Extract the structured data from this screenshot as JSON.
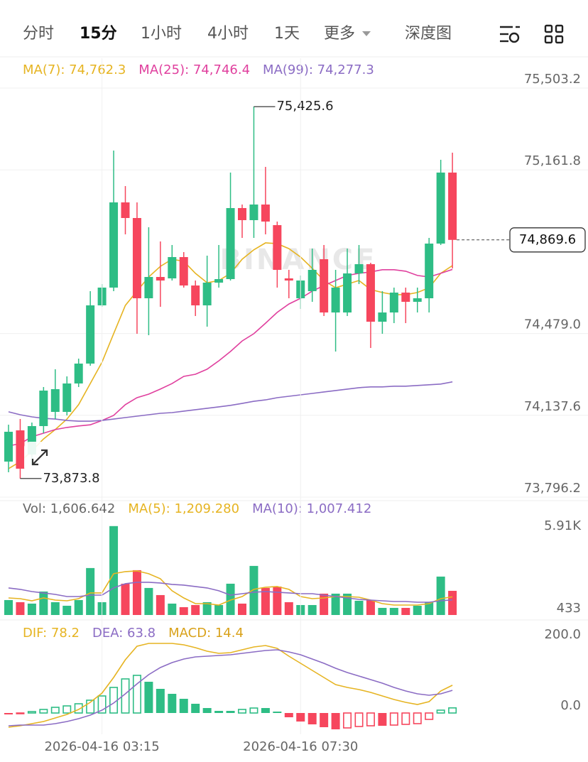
{
  "tabs": [
    "分时",
    "15分",
    "1小时",
    "4小时",
    "1天",
    "更多",
    "深度图"
  ],
  "active_tab": 1,
  "chart_data": [
    {
      "type": "candlestick",
      "watermark": "BINANCE",
      "up_color": "#2ebd85",
      "down_color": "#f6465d",
      "open": [
        73944.4,
        74074.8,
        73974.0,
        74092.6,
        74151.8,
        74151.8,
        74270.4,
        74353.4,
        74596.4,
        74670.5,
        75026.1,
        74960.9,
        74626.0,
        74714.9,
        74709.0,
        74797.9,
        74679.3,
        74596.4,
        74691.2,
        74706.0,
        75002.4,
        74952.0,
        75017.2,
        74931.2,
        74709.0,
        74626.0,
        74655.6,
        74789.0,
        74566.7,
        74566.7,
        74729.7,
        74768.3,
        74528.2,
        74566.7,
        74649.7,
        74611.2,
        74626.0,
        74854.2,
        75150.5
      ],
      "high": [
        74098.5,
        74122.2,
        74107.4,
        74255.6,
        74329.7,
        74300.0,
        74374.1,
        74655.6,
        74685.3,
        75242.4,
        75094.2,
        75026.1,
        74922.4,
        74863.1,
        74848.3,
        74818.6,
        74700.1,
        74803.8,
        74848.3,
        75150.5,
        75017.2,
        75425.6,
        75174.3,
        74946.1,
        74744.5,
        74720.8,
        74833.4,
        74848.3,
        74744.5,
        74833.4,
        74848.3,
        74774.2,
        74655.6,
        74670.5,
        74670.5,
        74670.5,
        74877.9,
        75203.9,
        75233.5
      ],
      "low": [
        73899.9,
        73873.8,
        73929.6,
        74062.9,
        74122.2,
        74137.0,
        74255.6,
        74344.5,
        74590.4,
        74655.6,
        74892.7,
        74477.8,
        74471.9,
        74590.4,
        74700.1,
        74670.5,
        74551.9,
        74507.5,
        74670.5,
        74700.1,
        74877.9,
        74877.9,
        74892.7,
        74670.5,
        74626.0,
        74581.6,
        74611.2,
        74551.9,
        74403.7,
        74551.9,
        74685.3,
        74418.6,
        74477.8,
        74522.3,
        74522.3,
        74566.7,
        74566.7,
        74848.3,
        74750.5
      ],
      "close": [
        74068.9,
        73914.8,
        74092.6,
        74240.7,
        74246.7,
        74270.4,
        74353.4,
        74596.4,
        74670.5,
        75026.1,
        74960.9,
        74626.0,
        74714.9,
        74700.1,
        74797.9,
        74679.3,
        74596.4,
        74691.2,
        74706.0,
        75002.4,
        74952.0,
        75017.2,
        74946.1,
        74744.5,
        74700.1,
        74700.1,
        74744.5,
        74566.7,
        74670.5,
        74729.7,
        74768.3,
        74528.2,
        74566.7,
        74649.7,
        74611.2,
        74626.0,
        74854.2,
        75150.5,
        74869.6
      ],
      "series": [
        {
          "name": "MA(7): 74,762.3",
          "color": "#e6b422",
          "values": [
            73915,
            73944,
            73989,
            74039,
            74078,
            74122,
            74182,
            74270,
            74359,
            74478,
            74596,
            74656,
            74715,
            74759,
            74789,
            74780,
            74730,
            74691,
            74700,
            74730,
            74789,
            74828,
            74857,
            74854,
            74833,
            74798,
            74751,
            74700,
            74670,
            74685,
            74700,
            74662,
            74650,
            74641,
            74641,
            74650,
            74670,
            74730,
            74762.3
          ]
        },
        {
          "name": "MA(25): 74,746.4",
          "color": "#e0409e",
          "values": [
            74010,
            74019,
            74048,
            74063,
            74078,
            74087,
            74093,
            74098,
            74116,
            74137,
            74182,
            74211,
            74226,
            74247,
            74270,
            74300,
            74309,
            74330,
            74365,
            74404,
            74448,
            74478,
            74522,
            74567,
            74602,
            74626,
            74656,
            74679,
            74700,
            74721,
            74730,
            74736,
            74745,
            74745,
            74739,
            74721,
            74715,
            74730,
            74746.4
          ]
        },
        {
          "name": "MA(99): 74,277.3",
          "color": "#8b6cc4",
          "values": [
            74152,
            74140,
            74131,
            74125,
            74122,
            74116,
            74113,
            74113,
            74116,
            74122,
            74128,
            74134,
            74140,
            74146,
            74149,
            74155,
            74161,
            74167,
            74173,
            74179,
            74187,
            74196,
            74202,
            74211,
            74217,
            74223,
            74229,
            74235,
            74241,
            74247,
            74253,
            74256,
            74256,
            74259,
            74259,
            74262,
            74265,
            74268,
            74277.3
          ]
        }
      ],
      "ylim": [
        73796.2,
        75503.2
      ],
      "yticks": [
        {
          "value": 73796.2,
          "label": "73,796.2"
        },
        {
          "value": 74137.6,
          "label": "74,137.6"
        },
        {
          "value": 74479.0,
          "label": "74,479.0"
        },
        {
          "value": 75161.8,
          "label": "75,161.8"
        },
        {
          "value": 75503.2,
          "label": "75,503.2"
        }
      ],
      "grid": true,
      "annotations": [
        {
          "value": 75425.6,
          "label": "75,425.6"
        },
        {
          "value": 73873.8,
          "label": "73,873.8"
        }
      ],
      "last_price": {
        "value": 74869.6,
        "label": "74,869.6"
      }
    },
    {
      "type": "volume",
      "name": "Vol: 1,606.642",
      "values": [
        993,
        851,
        757,
        1560,
        851,
        615,
        993,
        3121,
        851,
        5910,
        2080,
        2979,
        1797,
        1324,
        757,
        520,
        662,
        851,
        662,
        2080,
        757,
        3262,
        1797,
        1891,
        851,
        662,
        662,
        1418,
        1418,
        1418,
        946,
        993,
        473,
        473,
        473,
        615,
        851,
        2553,
        1606.642
      ],
      "series": [
        {
          "name": "MA(5): 1,209.280",
          "color": "#e6b422",
          "values": [
            1135,
            1087,
            946,
            1135,
            993,
            946,
            1087,
            1466,
            1466,
            2742,
            2884,
            2931,
            2742,
            2411,
            1608,
            1135,
            757,
            757,
            662,
            993,
            1229,
            1702,
            1844,
            1891,
            1702,
            1229,
            1087,
            1135,
            1229,
            1229,
            1182,
            993,
            757,
            662,
            662,
            662,
            757,
            1087,
            1209.28
          ]
        },
        {
          "name": "MA(10): 1,007.412",
          "color": "#8b6cc4",
          "values": [
            1797,
            1702,
            1560,
            1466,
            1371,
            1229,
            1229,
            1324,
            1324,
            1797,
            2080,
            2175,
            2175,
            2128,
            2033,
            1986,
            1891,
            1797,
            1608,
            1324,
            1418,
            1513,
            1560,
            1513,
            1466,
            1418,
            1418,
            1324,
            1229,
            1135,
            1040,
            993,
            946,
            898,
            898,
            851,
            851,
            946,
            1007.412
          ]
        }
      ],
      "ylim": [
        0,
        7600
      ],
      "yticks": [
        433,
        {
          "value": 5910,
          "label": "5.91K"
        }
      ]
    },
    {
      "type": "macd",
      "name": "MACD: 14.4",
      "categories": [
        null,
        null,
        null,
        null,
        null,
        null,
        null,
        null,
        "2026-04-16 03:15",
        null,
        null,
        null,
        null,
        null,
        null,
        null,
        null,
        null,
        null,
        null,
        null,
        null,
        null,
        null,
        null,
        "2026-04-16 07:30",
        null,
        null,
        null,
        null,
        null,
        null,
        null,
        null,
        null,
        null,
        null,
        null,
        null
      ],
      "values": [
        -4,
        -2,
        4,
        10,
        16,
        20,
        26,
        36,
        48,
        72,
        96,
        106,
        88,
        68,
        54,
        40,
        26,
        14,
        6,
        6,
        10,
        14,
        14,
        4,
        -12,
        -24,
        -32,
        -40,
        -46,
        -42,
        -38,
        -36,
        -36,
        -34,
        -32,
        -30,
        -18,
        8,
        14.4
      ],
      "series": [
        {
          "name": "DIF: 78.2",
          "color": "#e6b422",
          "values": [
            -40,
            -36,
            -30,
            -24,
            -14,
            -4,
            10,
            30,
            56,
            100,
            150,
            188,
            196,
            196,
            196,
            192,
            184,
            174,
            168,
            170,
            178,
            186,
            190,
            182,
            160,
            140,
            120,
            100,
            80,
            72,
            66,
            58,
            48,
            38,
            30,
            24,
            32,
            62,
            78.2
          ]
        },
        {
          "name": "DEA: 63.8",
          "color": "#8b6cc4",
          "values": [
            -36,
            -34,
            -34,
            -34,
            -30,
            -24,
            -16,
            -6,
            8,
            28,
            54,
            82,
            108,
            128,
            142,
            152,
            158,
            160,
            162,
            164,
            168,
            172,
            176,
            178,
            172,
            164,
            152,
            140,
            126,
            114,
            104,
            94,
            84,
            72,
            62,
            54,
            50,
            54,
            63.8
          ]
        }
      ],
      "ylim": [
        -60,
        250
      ],
      "yticks": [
        {
          "value": 0,
          "label": "0.0"
        },
        {
          "value": 200,
          "label": "200.0"
        }
      ]
    }
  ]
}
